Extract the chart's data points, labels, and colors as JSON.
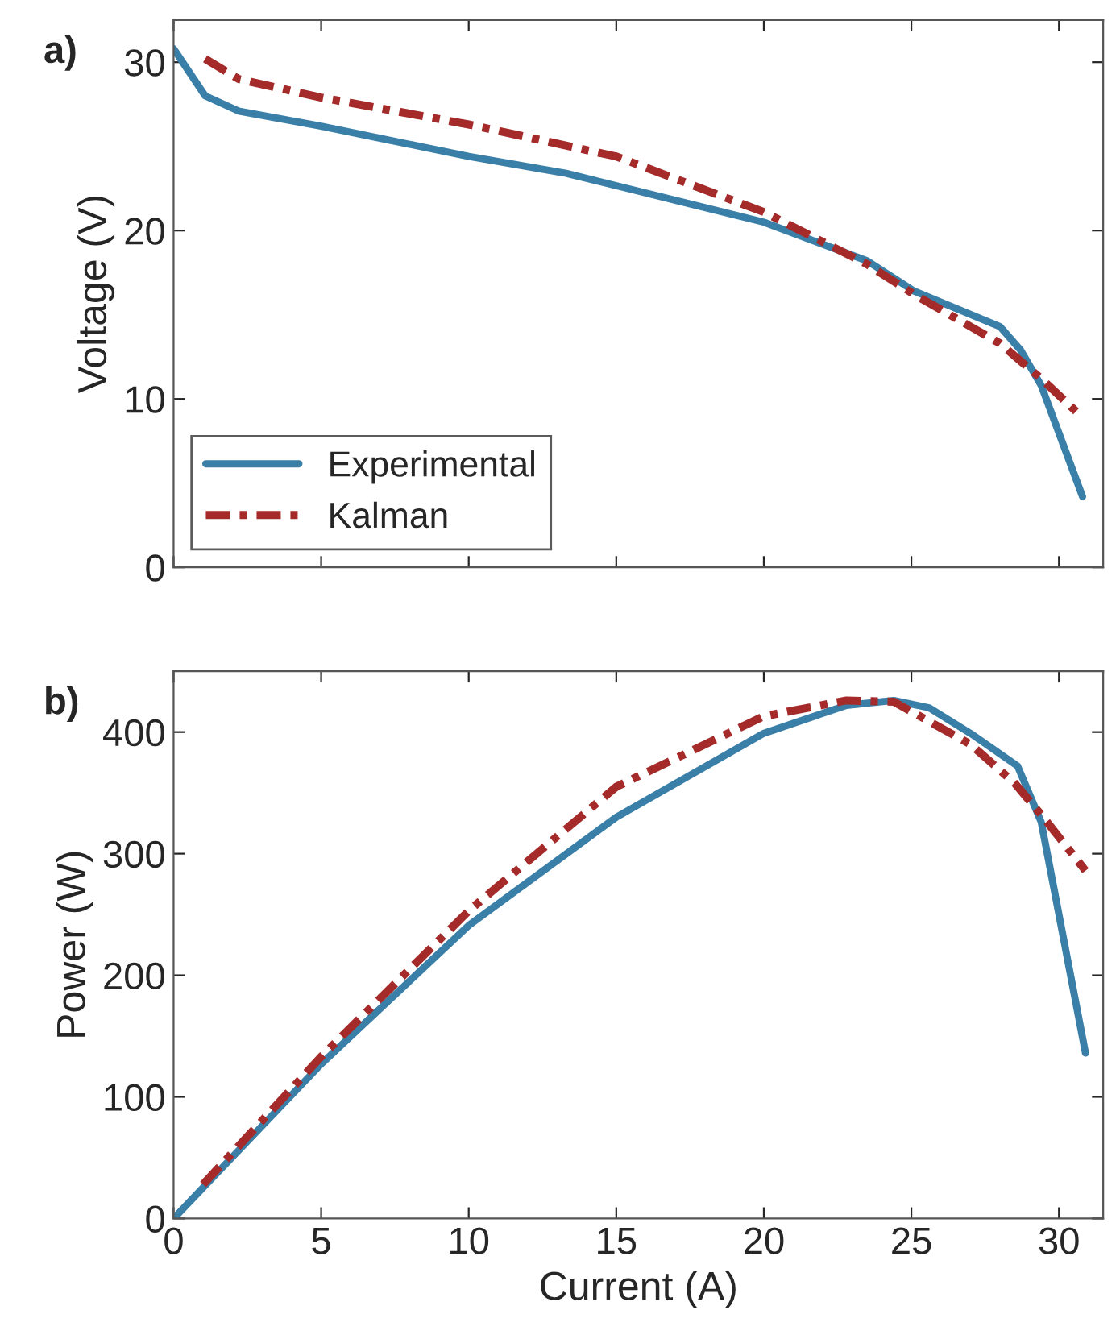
{
  "chart_data": [
    {
      "type": "line",
      "ylabel": "Voltage (V)",
      "annotations": [
        "a)"
      ],
      "xlim": [
        0,
        31.5
      ],
      "ylim": [
        0,
        32.5
      ],
      "xticks": [
        {
          "value": 0,
          "label": null
        },
        {
          "value": 5,
          "label": null
        },
        {
          "value": 10,
          "label": null
        },
        {
          "value": 15,
          "label": null
        },
        {
          "value": 20,
          "label": null
        },
        {
          "value": 25,
          "label": null
        },
        {
          "value": 30,
          "label": null
        }
      ],
      "yticks": [
        0,
        10,
        20,
        30
      ],
      "tick_labels": "y",
      "legend": "bottom left",
      "grid": false,
      "series": [
        {
          "name": "Experimental",
          "color": "#3a7fa8",
          "line_style": "solid",
          "x": [
            0,
            1.07,
            2.2,
            5,
            10,
            13.3,
            20,
            23.5,
            25.1,
            28,
            28.7,
            29.4,
            30.8
          ],
          "values": [
            30.8,
            28.0,
            27.1,
            26.2,
            24.4,
            23.4,
            20.5,
            18.2,
            16.4,
            14.3,
            12.9,
            10.8,
            4.2
          ]
        },
        {
          "name": "Kalman",
          "color": "#a52a2a",
          "line_style": "dashed",
          "x": [
            1.07,
            2.2,
            5,
            10,
            15,
            20,
            23.5,
            25.1,
            28,
            29.4,
            30.8
          ],
          "values": [
            30.2,
            29.0,
            27.9,
            26.3,
            24.4,
            21.1,
            18.0,
            16.2,
            13.3,
            11.2,
            8.9
          ]
        }
      ]
    },
    {
      "type": "line",
      "xlabel": "Current (A)",
      "ylabel": "Power (W)",
      "annotations": [
        "b)"
      ],
      "xlim": [
        0,
        31.5
      ],
      "ylim": [
        0,
        450
      ],
      "xticks": [
        0,
        5,
        10,
        15,
        20,
        25,
        30
      ],
      "yticks": [
        0,
        100,
        200,
        300,
        400
      ],
      "legend": false,
      "grid": false,
      "series": [
        {
          "color": "#3a7fa8",
          "line_style": "solid",
          "x": [
            0,
            5,
            10,
            15,
            20,
            22.8,
            24.4,
            25.6,
            27,
            28.6,
            29.4,
            30.9
          ],
          "values": [
            0,
            127,
            241,
            330,
            399,
            422,
            426,
            420,
            399,
            372,
            326,
            136
          ]
        },
        {
          "color": "#a52a2a",
          "line_style": "dashed",
          "x": [
            1,
            5,
            10,
            15,
            20,
            22.8,
            24.4,
            27,
            28.5,
            29.4,
            30.9
          ],
          "values": [
            28,
            133,
            253,
            355,
            413,
            426,
            425,
            390,
            358,
            332,
            286
          ]
        }
      ]
    }
  ]
}
